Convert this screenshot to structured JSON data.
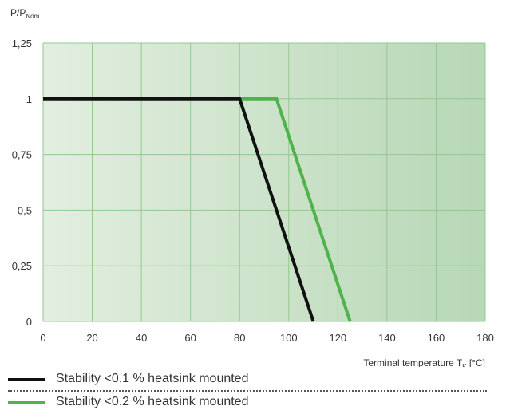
{
  "chart_data": {
    "type": "line",
    "ylabel_main": "P/P",
    "ylabel_sub": "Nom",
    "xlabel_main": "Terminal temperature T",
    "xlabel_sub": "K",
    "xlabel_unit": " [°C]",
    "xlim": [
      0,
      180
    ],
    "ylim": [
      0,
      1.25
    ],
    "x_ticks": [
      0,
      20,
      40,
      60,
      80,
      100,
      120,
      140,
      160,
      180
    ],
    "y_ticks": [
      0,
      0.25,
      0.5,
      0.75,
      1,
      1.25
    ],
    "x_tick_labels": [
      "0",
      "20",
      "40",
      "60",
      "80",
      "100",
      "120",
      "140",
      "160",
      "180"
    ],
    "y_tick_labels": [
      "0",
      "0,25",
      "0,5",
      "0,75",
      "1",
      "1,25"
    ],
    "grid": true,
    "legend_position": "bottom",
    "series": [
      {
        "name": "Stability <0.1 % heatsink mounted",
        "color": "#111111",
        "x": [
          0,
          80,
          110
        ],
        "y": [
          1,
          1,
          0
        ]
      },
      {
        "name": "Stability <0.2 % heatsink mounted",
        "color": "#4fb24a",
        "x": [
          80,
          95,
          125
        ],
        "y": [
          1,
          1,
          0
        ]
      }
    ]
  },
  "colors": {
    "plot_bg_start": "#e3eee0",
    "plot_bg_end": "#b7d8b6",
    "grid": "#93c98f"
  }
}
